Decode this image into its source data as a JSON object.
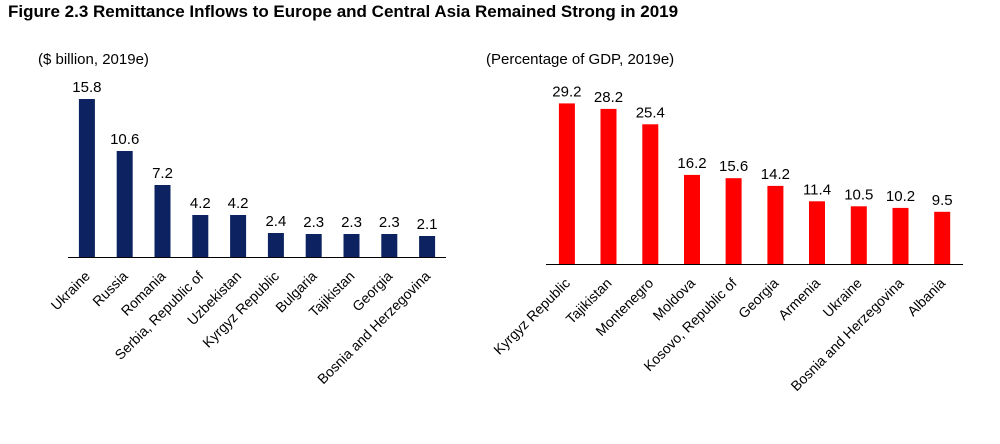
{
  "figure": {
    "title": "Figure 2.3 Remittance Inflows to Europe and Central Asia Remained Strong in 2019"
  },
  "chart_data": [
    {
      "type": "bar",
      "title": "",
      "unit_label": "($ billion, 2019e)",
      "xlabel": "",
      "ylabel": "",
      "categories": [
        "Ukraine",
        "Russia",
        "Romania",
        "Serbia, Republic of",
        "Uzbekistan",
        "Kyrgyz Republic",
        "Bulgaria",
        "Tajikistan",
        "Georgia",
        "Bosnia and Herzegovina"
      ],
      "values": [
        15.8,
        10.6,
        7.2,
        4.2,
        4.2,
        2.4,
        2.3,
        2.3,
        2.3,
        2.1
      ],
      "data_labels": [
        "15.8",
        "10.6",
        "7.2",
        "4.2",
        "4.2",
        "2.4",
        "2.3",
        "2.3",
        "2.3",
        "2.1"
      ],
      "ylim": [
        0,
        16
      ],
      "bar_color": "#0d2260",
      "grid": false,
      "legend": "none"
    },
    {
      "type": "bar",
      "title": "",
      "unit_label": "(Percentage of GDP, 2019e)",
      "xlabel": "",
      "ylabel": "",
      "categories": [
        "Kyrgyz Republic",
        "Tajikistan",
        "Montenegro",
        "Moldova",
        "Kosovo, Republic of",
        "Georgia",
        "Armenia",
        "Ukraine",
        "Bosnia and Herzegovina",
        "Albania"
      ],
      "values": [
        29.2,
        28.2,
        25.4,
        16.2,
        15.6,
        14.2,
        11.4,
        10.5,
        10.2,
        9.5
      ],
      "data_labels": [
        "29.2",
        "28.2",
        "25.4",
        "16.2",
        "15.6",
        "14.2",
        "11.4",
        "10.5",
        "10.2",
        "9.5"
      ],
      "ylim": [
        0,
        30
      ],
      "bar_color": "#ff0000",
      "grid": false,
      "legend": "none"
    }
  ]
}
